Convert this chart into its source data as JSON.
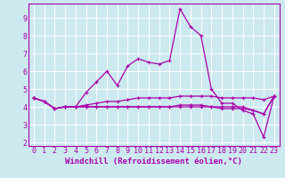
{
  "background_color": "#cce9ef",
  "grid_color": "#ffffff",
  "line_color": "#aa00aa",
  "xlabel": "Windchill (Refroidissement éolien,°C)",
  "xlabel_fontsize": 6.5,
  "tick_fontsize": 6,
  "xlim": [
    -0.5,
    23.5
  ],
  "ylim": [
    1.8,
    9.8
  ],
  "yticks": [
    2,
    3,
    4,
    5,
    6,
    7,
    8,
    9
  ],
  "xticks": [
    0,
    1,
    2,
    3,
    4,
    5,
    6,
    7,
    8,
    9,
    10,
    11,
    12,
    13,
    14,
    15,
    16,
    17,
    18,
    19,
    20,
    21,
    22,
    23
  ],
  "series": [
    [
      4.5,
      4.3,
      3.9,
      4.0,
      4.0,
      4.8,
      5.4,
      6.0,
      5.2,
      6.3,
      6.7,
      6.5,
      6.4,
      6.6,
      9.5,
      8.5,
      8.0,
      5.0,
      4.2,
      4.2,
      3.8,
      3.6,
      2.3,
      4.6
    ],
    [
      4.5,
      4.3,
      3.9,
      4.0,
      4.0,
      4.1,
      4.2,
      4.3,
      4.3,
      4.4,
      4.5,
      4.5,
      4.5,
      4.5,
      4.6,
      4.6,
      4.6,
      4.6,
      4.5,
      4.5,
      4.5,
      4.5,
      4.4,
      4.6
    ],
    [
      4.5,
      4.3,
      3.9,
      4.0,
      4.0,
      4.0,
      4.0,
      4.0,
      4.0,
      4.0,
      4.0,
      4.0,
      4.0,
      4.0,
      4.0,
      4.0,
      4.0,
      4.0,
      3.9,
      3.9,
      3.9,
      3.8,
      3.6,
      4.6
    ],
    [
      4.5,
      4.3,
      3.9,
      4.0,
      4.0,
      4.0,
      4.0,
      4.0,
      4.0,
      4.0,
      4.0,
      4.0,
      4.0,
      4.0,
      4.1,
      4.1,
      4.1,
      4.0,
      4.0,
      4.0,
      4.0,
      3.8,
      3.6,
      4.6
    ]
  ]
}
